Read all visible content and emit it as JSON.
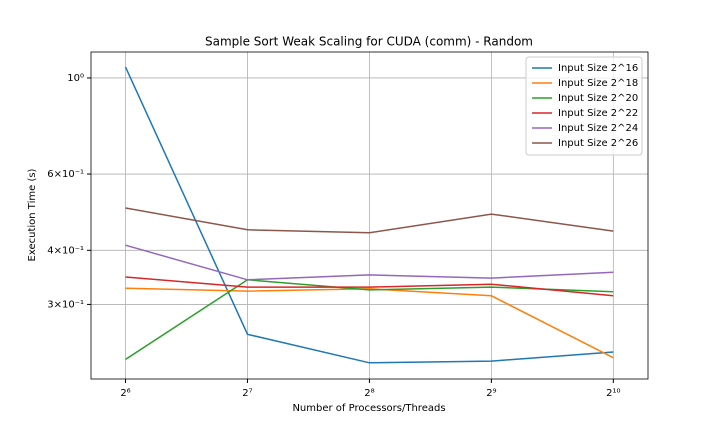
{
  "chart_data": {
    "type": "line",
    "title": "Sample Sort Weak Scaling for CUDA (comm) - Random",
    "x_label": "Number of Processors/Threads",
    "y_label": "Execution Time (s)",
    "x": [
      64,
      128,
      256,
      512,
      1024
    ],
    "x_log_base": 2,
    "y_log": true,
    "grid": true,
    "legend": "upper right",
    "xlim": [
      52.6,
      1247
    ],
    "ylim": [
      0.2018,
      1.148
    ],
    "xticks": [
      {
        "value": 64,
        "label": "2⁶"
      },
      {
        "value": 128,
        "label": "2⁷"
      },
      {
        "value": 256,
        "label": "2⁸"
      },
      {
        "value": 512,
        "label": "2⁹"
      },
      {
        "value": 1024,
        "label": "2¹⁰"
      }
    ],
    "yticks": [
      {
        "value": 0.3,
        "label": "3×10⁻¹"
      },
      {
        "value": 0.4,
        "label": "4×10⁻¹"
      },
      {
        "value": 0.6,
        "label": "6×10⁻¹"
      },
      {
        "value": 1,
        "label": "10⁰"
      }
    ],
    "series": [
      {
        "name": "Input Size 2^16",
        "color": "#1f77b4",
        "values": [
          1.06,
          0.256,
          0.22,
          0.222,
          0.233
        ]
      },
      {
        "name": "Input Size 2^18",
        "color": "#ff7f0e",
        "values": [
          0.327,
          0.322,
          0.326,
          0.314,
          0.226
        ]
      },
      {
        "name": "Input Size 2^20",
        "color": "#2ca02c",
        "values": [
          0.224,
          0.342,
          0.324,
          0.329,
          0.321
        ]
      },
      {
        "name": "Input Size 2^22",
        "color": "#d62728",
        "values": [
          0.347,
          0.329,
          0.329,
          0.334,
          0.314
        ]
      },
      {
        "name": "Input Size 2^24",
        "color": "#9467bd",
        "values": [
          0.411,
          0.342,
          0.351,
          0.345,
          0.356
        ]
      },
      {
        "name": "Input Size 2^26",
        "color": "#8c564b",
        "values": [
          0.501,
          0.446,
          0.439,
          0.485,
          0.443
        ]
      }
    ]
  }
}
